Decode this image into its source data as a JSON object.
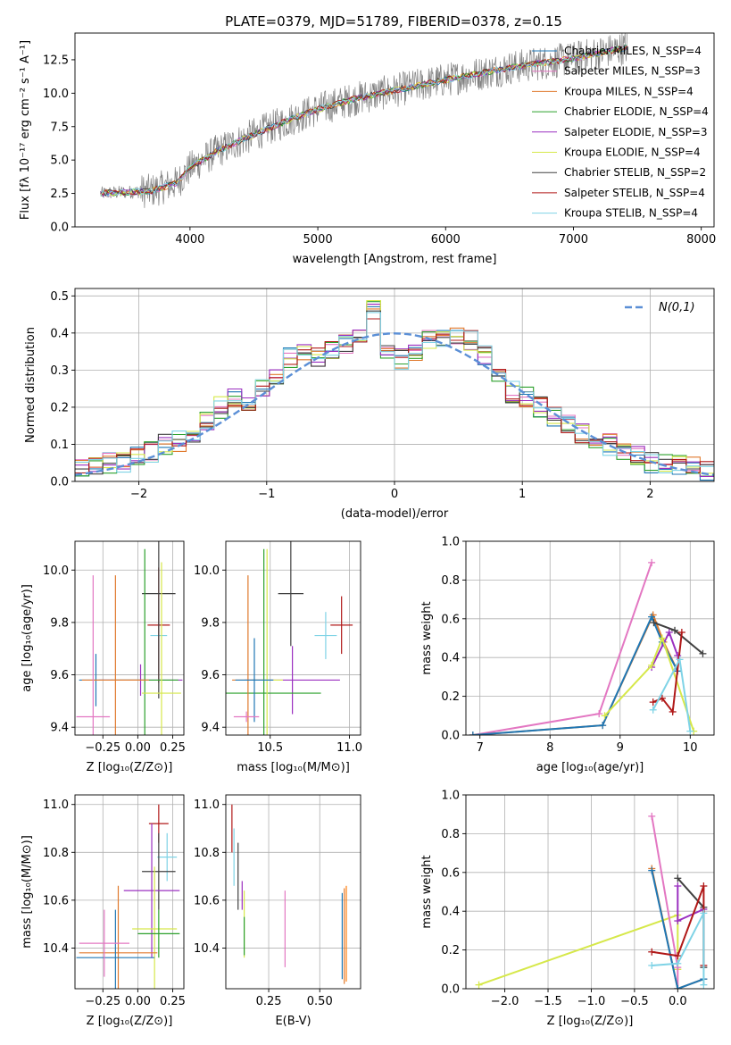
{
  "figure_title": "PLATE=0379, MJD=51789, FIBERID=0378, z=0.15",
  "colors": {
    "Chabrier MILES": "#1f77b4",
    "Salpeter MILES": "#ff7f0e",
    "Kroupa MILES": "#e07a2e",
    "Chabrier ELODIE": "#2ca02c",
    "Salpeter ELODIE": "#9b30c0",
    "Kroupa ELODIE": "#d6e84a",
    "Chabrier STELIB": "#404040",
    "Salpeter STELIB": "#b01818",
    "Kroupa STELIB": "#7fd3e6",
    "Salpeter MILES alt": "#e377c2",
    "data": "#808080",
    "normal": "#5b8fd6"
  },
  "chart_data": [
    {
      "id": "spectrum",
      "type": "line",
      "title": "PLATE=0379, MJD=51789, FIBERID=0378, z=0.15",
      "xlabel": "wavelength [Angstrom, rest frame]",
      "ylabel": "Flux [fλ 10⁻¹⁷ erg cm⁻² s⁻¹ A⁻¹]",
      "xlim": [
        3100,
        8100
      ],
      "ylim": [
        0,
        14.5
      ],
      "xticks": [
        4000,
        5000,
        6000,
        7000,
        8000
      ],
      "yticks": [
        0.0,
        2.5,
        5.0,
        7.5,
        10.0,
        12.5
      ],
      "legend_position": "top-right",
      "legend": [
        "Chabrier MILES, N_SSP=4",
        "Salpeter MILES, N_SSP=3",
        "Kroupa MILES, N_SSP=4",
        "Chabrier ELODIE, N_SSP=4",
        "Salpeter ELODIE, N_SSP=3",
        "Kroupa ELODIE, N_SSP=4",
        "Chabrier STELIB, N_SSP=2",
        "Salpeter STELIB, N_SSP=4",
        "Kroupa STELIB, N_SSP=4"
      ],
      "continuum": [
        [
          3300,
          2.5
        ],
        [
          3500,
          2.6
        ],
        [
          3700,
          2.7
        ],
        [
          3900,
          3.3
        ],
        [
          4000,
          4.4
        ],
        [
          4200,
          5.6
        ],
        [
          4500,
          6.9
        ],
        [
          4800,
          8.1
        ],
        [
          5000,
          8.8
        ],
        [
          5300,
          9.6
        ],
        [
          5600,
          10.2
        ],
        [
          6000,
          11.0
        ],
        [
          6500,
          11.9
        ],
        [
          7000,
          12.6
        ],
        [
          7400,
          13.4
        ]
      ]
    },
    {
      "id": "residuals",
      "type": "line",
      "xlabel": "(data-model)/error",
      "ylabel": "Normed distribution",
      "xlim": [
        -2.5,
        2.5
      ],
      "ylim": [
        0,
        0.52
      ],
      "xticks": [
        -2,
        -1,
        0,
        1,
        2
      ],
      "yticks": [
        0.0,
        0.1,
        0.2,
        0.3,
        0.4,
        0.5
      ],
      "legend_position": "top-right",
      "legend": [
        "N(0,1)"
      ],
      "hist_base": [
        0.03,
        0.04,
        0.05,
        0.05,
        0.07,
        0.08,
        0.1,
        0.11,
        0.13,
        0.16,
        0.2,
        0.22,
        0.22,
        0.25,
        0.29,
        0.33,
        0.34,
        0.34,
        0.35,
        0.37,
        0.4,
        0.46,
        0.36,
        0.33,
        0.35,
        0.38,
        0.39,
        0.4,
        0.38,
        0.34,
        0.29,
        0.24,
        0.23,
        0.2,
        0.17,
        0.15,
        0.13,
        0.12,
        0.1,
        0.08,
        0.07,
        0.05,
        0.05,
        0.04,
        0.04,
        0.03
      ]
    },
    {
      "id": "age-vs-Z",
      "type": "scatter",
      "xlabel": "Z [log₁₀(Z/Z⊙)]",
      "ylabel": "age  [log₁₀(age/yr)]",
      "xlim": [
        -0.45,
        0.33
      ],
      "ylim": [
        9.37,
        10.11
      ],
      "xticks": [
        -0.25,
        0.0,
        0.25
      ],
      "yticks": [
        9.4,
        9.6,
        9.8,
        10.0
      ],
      "points": [
        {
          "model": "Kroupa STELIB",
          "x": 0.15,
          "y": 9.75,
          "xerr": 0.06,
          "yerr": 0.14
        },
        {
          "model": "Salpeter STELIB",
          "x": 0.15,
          "y": 9.79,
          "xerr": 0.08,
          "yerr": 0.22
        },
        {
          "model": "Chabrier STELIB",
          "x": 0.15,
          "y": 9.91,
          "xerr": 0.12,
          "yerr": 0.4
        },
        {
          "model": "Salpeter ELODIE",
          "x": 0.02,
          "y": 9.58,
          "xerr": 0.3,
          "yerr": 0.06
        },
        {
          "model": "Chabrier ELODIE",
          "x": 0.05,
          "y": 9.58,
          "xerr": 0.24,
          "yerr": 0.5
        },
        {
          "model": "Kroupa ELODIE",
          "x": 0.17,
          "y": 9.53,
          "xerr": 0.14,
          "yerr": 0.5
        },
        {
          "model": "Chabrier MILES",
          "x": -0.3,
          "y": 9.58,
          "xerr": 0.12,
          "yerr": 0.1
        },
        {
          "model": "Kroupa MILES",
          "x": -0.16,
          "y": 9.58,
          "xerr": 0.24,
          "yerr": 0.4
        },
        {
          "model": "Salpeter MILES alt",
          "x": -0.32,
          "y": 9.44,
          "xerr": 0.12,
          "yerr": 0.54
        }
      ]
    },
    {
      "id": "age-vs-mass",
      "type": "scatter",
      "xlabel": "mass [log₁₀(M/M⊙)]",
      "ylabel": "",
      "xlim": [
        10.22,
        11.07
      ],
      "ylim": [
        9.37,
        10.11
      ],
      "xticks": [
        10.5,
        11.0
      ],
      "yticks": [
        9.4,
        9.6,
        9.8,
        10.0
      ],
      "points": [
        {
          "model": "Salpeter STELIB",
          "x": 10.95,
          "y": 9.79,
          "xerr": 0.07,
          "yerr": 0.11
        },
        {
          "model": "Kroupa STELIB",
          "x": 10.85,
          "y": 9.75,
          "xerr": 0.07,
          "yerr": 0.09
        },
        {
          "model": "Chabrier STELIB",
          "x": 10.63,
          "y": 9.91,
          "xerr": 0.08,
          "yerr": 0.2
        },
        {
          "model": "Salpeter ELODIE",
          "x": 10.64,
          "y": 9.58,
          "xerr": 0.3,
          "yerr": 0.13
        },
        {
          "model": "Chabrier ELODIE",
          "x": 10.46,
          "y": 9.53,
          "xerr": 0.36,
          "yerr": 0.55
        },
        {
          "model": "Kroupa ELODIE",
          "x": 10.48,
          "y": 9.58,
          "xerr": 0.1,
          "yerr": 0.5
        },
        {
          "model": "Kroupa MILES",
          "x": 10.36,
          "y": 9.58,
          "xerr": 0.1,
          "yerr": 0.4
        },
        {
          "model": "Chabrier MILES",
          "x": 10.4,
          "y": 9.58,
          "xerr": 0.12,
          "yerr": 0.16
        },
        {
          "model": "Salpeter MILES alt",
          "x": 10.35,
          "y": 9.44,
          "xerr": 0.08,
          "yerr": 0.02
        }
      ]
    },
    {
      "id": "mass-weight-vs-age",
      "type": "line",
      "xlabel": "age  [log₁₀(age/yr)]",
      "ylabel": "mass weight",
      "xlim": [
        6.8,
        10.34
      ],
      "ylim": [
        0.0,
        1.0
      ],
      "xticks": [
        7,
        8,
        9,
        10
      ],
      "yticks": [
        0.0,
        0.2,
        0.4,
        0.6,
        0.8,
        1.0
      ],
      "series": [
        {
          "model": "Salpeter MILES alt",
          "x": [
            6.9,
            8.7,
            9.45
          ],
          "y": [
            0.0,
            0.11,
            0.89
          ]
        },
        {
          "model": "Kroupa MILES",
          "x": [
            6.9,
            8.75,
            9.47,
            9.62,
            9.82
          ],
          "y": [
            0.0,
            0.05,
            0.62,
            0.48,
            0.33
          ]
        },
        {
          "model": "Chabrier MILES",
          "x": [
            6.9,
            8.75,
            9.45,
            9.6,
            9.82
          ],
          "y": [
            0.0,
            0.05,
            0.61,
            0.48,
            0.33
          ]
        },
        {
          "model": "Salpeter ELODIE",
          "x": [
            9.45,
            9.7,
            9.82
          ],
          "y": [
            0.35,
            0.53,
            0.41
          ]
        },
        {
          "model": "Kroupa ELODIE",
          "x": [
            8.78,
            9.45,
            9.6,
            10.05
          ],
          "y": [
            0.1,
            0.36,
            0.5,
            0.02
          ]
        },
        {
          "model": "Chabrier STELIB",
          "x": [
            9.48,
            9.78,
            10.18
          ],
          "y": [
            0.58,
            0.54,
            0.42
          ]
        },
        {
          "model": "Salpeter STELIB",
          "x": [
            9.47,
            9.6,
            9.75,
            9.88
          ],
          "y": [
            0.17,
            0.19,
            0.12,
            0.53
          ]
        },
        {
          "model": "Kroupa STELIB",
          "x": [
            9.47,
            9.85,
            10.0
          ],
          "y": [
            0.13,
            0.39,
            0.02
          ]
        }
      ]
    },
    {
      "id": "mass-vs-Z",
      "type": "scatter",
      "xlabel": "Z [log₁₀(Z/Z⊙)]",
      "ylabel": "mass [log₁₀(M/M⊙)]",
      "xlim": [
        -0.45,
        0.33
      ],
      "ylim": [
        10.23,
        11.04
      ],
      "xticks": [
        -0.25,
        0.0,
        0.25
      ],
      "yticks": [
        10.4,
        10.6,
        10.8,
        11.0
      ],
      "points": [
        {
          "model": "Salpeter STELIB",
          "x": 0.15,
          "y": 10.92,
          "xerr": 0.07,
          "yerr": 0.08
        },
        {
          "model": "Kroupa STELIB",
          "x": 0.21,
          "y": 10.78,
          "xerr": 0.07,
          "yerr": 0.1
        },
        {
          "model": "Chabrier STELIB",
          "x": 0.15,
          "y": 10.72,
          "xerr": 0.12,
          "yerr": 0.16
        },
        {
          "model": "Salpeter ELODIE",
          "x": 0.1,
          "y": 10.64,
          "xerr": 0.2,
          "yerr": 0.28
        },
        {
          "model": "Kroupa ELODIE",
          "x": 0.12,
          "y": 10.48,
          "xerr": 0.16,
          "yerr": 0.26
        },
        {
          "model": "Chabrier ELODIE",
          "x": 0.15,
          "y": 10.46,
          "xerr": 0.15,
          "yerr": 0.1
        },
        {
          "model": "Kroupa MILES",
          "x": -0.14,
          "y": 10.38,
          "xerr": 0.28,
          "yerr": 0.28
        },
        {
          "model": "Chabrier MILES",
          "x": -0.16,
          "y": 10.36,
          "xerr": 0.28,
          "yerr": 0.2
        },
        {
          "model": "Salpeter MILES alt",
          "x": -0.24,
          "y": 10.42,
          "xerr": 0.18,
          "yerr": 0.14
        }
      ]
    },
    {
      "id": "mass-vs-EBV",
      "type": "scatter",
      "xlabel": "E(B-V)",
      "ylabel": "",
      "xlim": [
        0.04,
        0.7
      ],
      "ylim": [
        10.23,
        11.04
      ],
      "xticks": [
        0.25,
        0.5
      ],
      "yticks": [
        10.4,
        10.6,
        10.8,
        11.0
      ],
      "points": [
        {
          "model": "Salpeter STELIB",
          "x": 0.07,
          "y": 10.9,
          "yerr": 0.1
        },
        {
          "model": "Kroupa STELIB",
          "x": 0.08,
          "y": 10.78,
          "yerr": 0.12
        },
        {
          "model": "Chabrier STELIB",
          "x": 0.1,
          "y": 10.7,
          "yerr": 0.14
        },
        {
          "model": "Salpeter ELODIE",
          "x": 0.12,
          "y": 10.62,
          "yerr": 0.06
        },
        {
          "model": "Kroupa ELODIE",
          "x": 0.13,
          "y": 10.5,
          "yerr": 0.14
        },
        {
          "model": "Chabrier ELODIE",
          "x": 0.13,
          "y": 10.45,
          "yerr": 0.08
        },
        {
          "model": "Salpeter MILES alt",
          "x": 0.33,
          "y": 10.48,
          "yerr": 0.16
        },
        {
          "model": "Chabrier MILES",
          "x": 0.61,
          "y": 10.45,
          "yerr": 0.18
        },
        {
          "model": "Kroupa MILES",
          "x": 0.62,
          "y": 10.45,
          "yerr": 0.2
        },
        {
          "model": "Salpeter MILES",
          "x": 0.63,
          "y": 10.46,
          "yerr": 0.2
        }
      ]
    },
    {
      "id": "mass-weight-vs-Z",
      "type": "line",
      "xlabel": "Z [log₁₀(Z/Z⊙)]",
      "ylabel": "mass weight",
      "xlim": [
        -2.45,
        0.42
      ],
      "ylim": [
        0.0,
        1.0
      ],
      "xticks": [
        -2.0,
        -1.5,
        -1.0,
        -0.5,
        0.0
      ],
      "yticks": [
        0.0,
        0.2,
        0.4,
        0.6,
        0.8,
        1.0
      ],
      "series": [
        {
          "model": "Kroupa ELODIE",
          "x": [
            -2.3,
            0.0,
            0.0
          ],
          "y": [
            0.02,
            0.38,
            0.1
          ]
        },
        {
          "model": "Salpeter MILES alt",
          "x": [
            -0.3,
            0.0,
            0.0
          ],
          "y": [
            0.89,
            0.11,
            0.0
          ]
        },
        {
          "model": "Kroupa MILES",
          "x": [
            -0.3,
            0.0,
            0.3
          ],
          "y": [
            0.62,
            0.0,
            0.05
          ]
        },
        {
          "model": "Chabrier MILES",
          "x": [
            -0.3,
            0.0,
            0.3
          ],
          "y": [
            0.61,
            0.0,
            0.05
          ]
        },
        {
          "model": "Chabrier STELIB",
          "x": [
            0.0,
            0.3,
            0.3
          ],
          "y": [
            0.57,
            0.42,
            0.11
          ]
        },
        {
          "model": "Salpeter ELODIE",
          "x": [
            0.0,
            0.0,
            0.3
          ],
          "y": [
            0.53,
            0.35,
            0.41
          ]
        },
        {
          "model": "Salpeter STELIB",
          "x": [
            -0.3,
            0.0,
            0.3,
            0.3
          ],
          "y": [
            0.19,
            0.17,
            0.53,
            0.12
          ]
        },
        {
          "model": "Kroupa STELIB",
          "x": [
            -0.3,
            0.0,
            0.3,
            0.3
          ],
          "y": [
            0.12,
            0.13,
            0.39,
            0.02
          ]
        }
      ]
    }
  ]
}
